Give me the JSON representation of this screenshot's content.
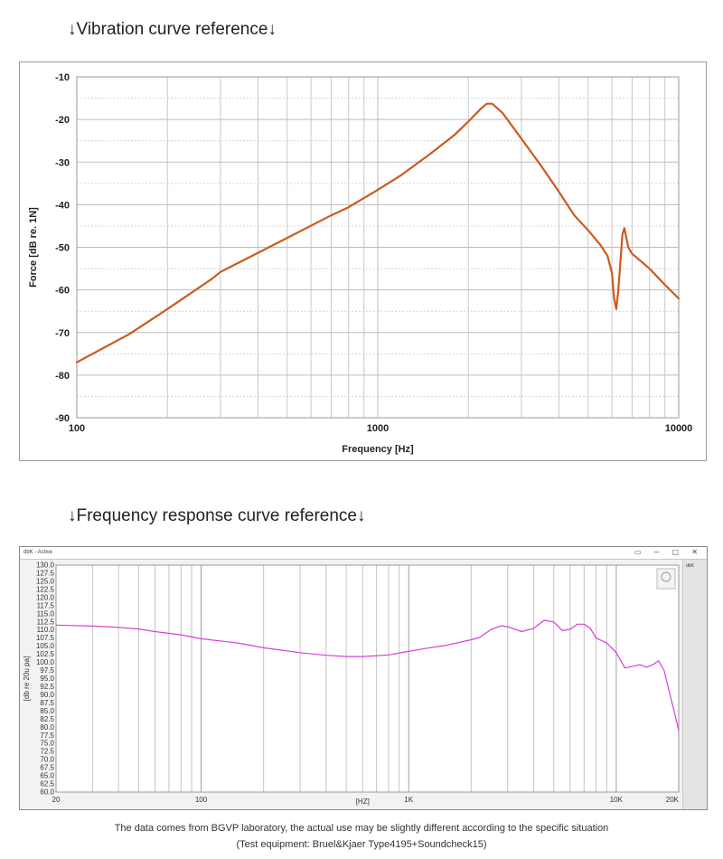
{
  "headings": {
    "vibration": "↓Vibration curve reference↓",
    "frequency": "↓Frequency response curve reference↓"
  },
  "footnotes": {
    "line1": "The data comes from BGVP laboratory, the actual use may be slightly different according to the specific situation",
    "line2": "(Test equipment: Bruel&Kjaer Type4195+Soundcheck15)"
  },
  "window": {
    "title": "dbK - Active",
    "controls": "▭ ─ ▢ ✕",
    "legend_label": "dbK"
  },
  "colors": {
    "vibration_line": "#cc5a1e",
    "frequency_line": "#d63fd6",
    "grid": "#c8c8c8",
    "grid_dotted": "#d4d4d4"
  },
  "chart_data": [
    {
      "type": "line",
      "title": "",
      "xlabel": "Frequency [Hz]",
      "ylabel": "Force [dB re. 1N]",
      "xscale": "log",
      "xlim": [
        100,
        10000
      ],
      "ylim": [
        -90,
        -10
      ],
      "x_ticks": [
        100,
        1000,
        10000
      ],
      "x_tick_labels": [
        "100",
        "1000",
        "10000"
      ],
      "y_ticks": [
        -10,
        -20,
        -30,
        -40,
        -50,
        -60,
        -70,
        -80,
        -90
      ],
      "y_tick_labels": [
        "-10",
        "-20",
        "-30",
        "-40",
        "-50",
        "-60",
        "-70",
        "-80",
        "-90"
      ],
      "grid": true,
      "series": [
        {
          "name": "Force",
          "x": [
            100,
            150,
            200,
            280,
            300,
            400,
            500,
            700,
            800,
            1000,
            1200,
            1500,
            1800,
            2000,
            2200,
            2300,
            2400,
            2600,
            3000,
            3500,
            4000,
            4500,
            5000,
            5500,
            5800,
            6000,
            6100,
            6200,
            6300,
            6500,
            6600,
            6800,
            7000,
            8000,
            9000,
            10000
          ],
          "y": [
            -77,
            -70.3,
            -64.5,
            -57.5,
            -55.8,
            -51.3,
            -47.8,
            -42.5,
            -40.6,
            -36.5,
            -33,
            -28,
            -23.6,
            -20.5,
            -17.5,
            -16.3,
            -16.3,
            -18.5,
            -24.5,
            -31,
            -37,
            -42.5,
            -46,
            -49.5,
            -52,
            -56,
            -62,
            -64.5,
            -60,
            -47,
            -45.5,
            -50,
            -51.5,
            -55,
            -58.8,
            -62
          ]
        }
      ]
    },
    {
      "type": "line",
      "title": "",
      "xlabel": "[HZ]",
      "ylabel": "[db re 20u pa]",
      "xscale": "log",
      "xlim": [
        20,
        20000
      ],
      "ylim": [
        60,
        130
      ],
      "x_ticks": [
        20,
        100,
        1000,
        10000,
        20000
      ],
      "x_tick_labels": [
        "20",
        "100",
        "1K",
        "10K",
        "20K"
      ],
      "y_tick_labels": [
        "130.0",
        "127.5",
        "125.0",
        "122.5",
        "120.0",
        "117.5",
        "115.0",
        "112.5",
        "110.0",
        "107.5",
        "105.0",
        "102.5",
        "100.0",
        "97.5",
        "95.0",
        "92.5",
        "90.0",
        "87.5",
        "85.0",
        "82.5",
        "80.0",
        "77.5",
        "75.0",
        "72.5",
        "70.0",
        "67.5",
        "65.0",
        "62.5",
        "60.0"
      ],
      "grid": true,
      "series": [
        {
          "name": "Frequency response",
          "x": [
            20,
            30,
            40,
            50,
            60,
            80,
            100,
            150,
            200,
            300,
            400,
            500,
            600,
            800,
            1000,
            1200,
            1500,
            2000,
            2200,
            2500,
            2800,
            3000,
            3500,
            4000,
            4500,
            5000,
            5500,
            6000,
            6500,
            7000,
            7500,
            8000,
            9000,
            10000,
            11000,
            12000,
            13000,
            14000,
            15000,
            16000,
            17000,
            18000,
            19000,
            20000
          ],
          "y": [
            111.5,
            111.2,
            110.8,
            110.3,
            109.5,
            108.5,
            107.3,
            106,
            104.5,
            103,
            102.2,
            101.8,
            101.8,
            102.3,
            103.4,
            104.3,
            105.2,
            107,
            107.7,
            110.2,
            111.3,
            111,
            109.5,
            110.5,
            113,
            112.5,
            109.8,
            110.2,
            111.8,
            111.8,
            110.5,
            107.5,
            106,
            103,
            98.3,
            98.8,
            99.3,
            98.5,
            99.3,
            100.5,
            97.5,
            91,
            85,
            79
          ]
        }
      ]
    }
  ]
}
